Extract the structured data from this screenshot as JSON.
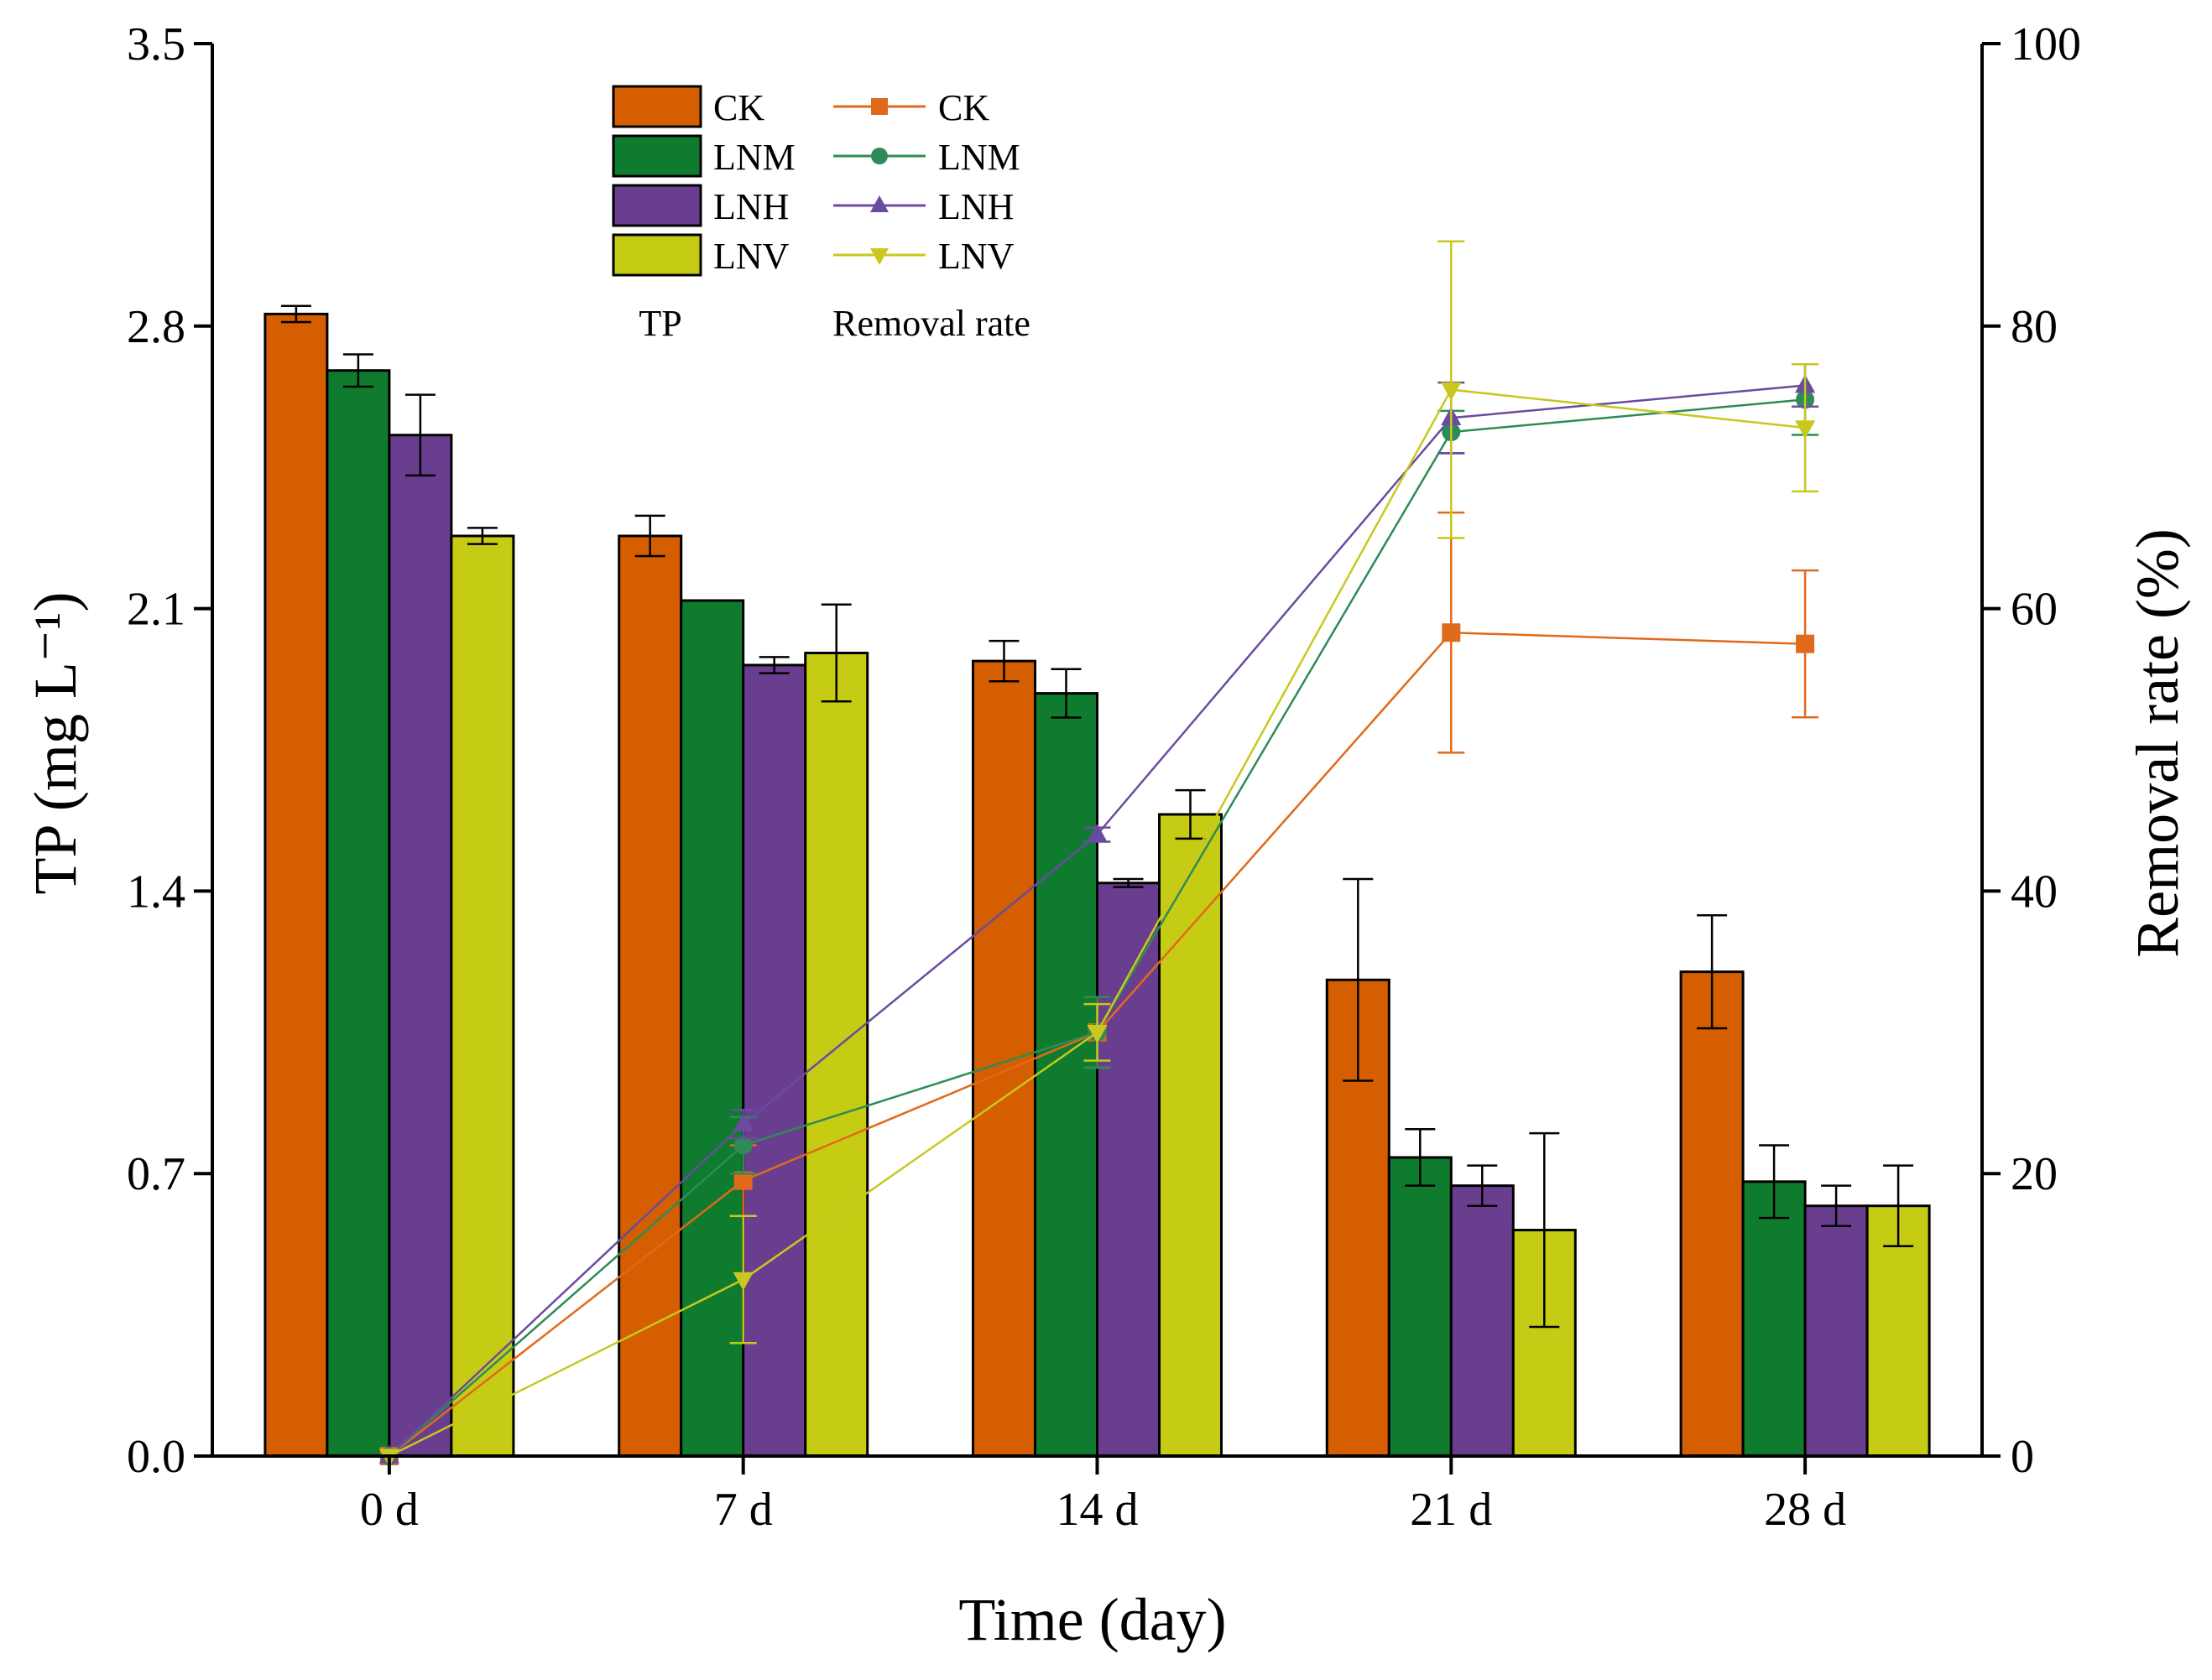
{
  "chart_data": {
    "type": "bar",
    "categories": [
      "0 d",
      "7 d",
      "14 d",
      "21 d",
      "28 d"
    ],
    "xlabel": "Time (day)",
    "ylabel": "TP (mg L⁻¹)",
    "ylabel_right": "Removal rate (%)",
    "ylim": [
      0,
      3.5
    ],
    "yticks": [
      "0.0",
      "0.7",
      "1.4",
      "2.1",
      "2.8",
      "3.5"
    ],
    "ylim_right": [
      0,
      100
    ],
    "yticks_right": [
      "0",
      "20",
      "40",
      "60",
      "80",
      "100"
    ],
    "legend_position": "top-left",
    "legend_headers": {
      "bars": "TP",
      "lines": "Removal rate"
    },
    "bar_series": [
      {
        "name": "CK",
        "color": "#D55E00",
        "values": [
          2.83,
          2.28,
          1.97,
          1.18,
          1.2
        ],
        "errors": [
          0.02,
          0.05,
          0.05,
          0.25,
          0.14
        ]
      },
      {
        "name": "LNM",
        "color": "#0F7B2E",
        "values": [
          2.69,
          2.12,
          1.89,
          0.74,
          0.68
        ],
        "errors": [
          0.04,
          0.0,
          0.06,
          0.07,
          0.09
        ]
      },
      {
        "name": "LNH",
        "color": "#6A3E8E",
        "values": [
          2.53,
          1.96,
          1.42,
          0.67,
          0.62
        ],
        "errors": [
          0.1,
          0.02,
          0.01,
          0.05,
          0.05
        ]
      },
      {
        "name": "LNV",
        "color": "#C6CC14",
        "values": [
          2.28,
          1.99,
          1.59,
          0.56,
          0.62
        ],
        "errors": [
          0.02,
          0.12,
          0.06,
          0.24,
          0.1
        ]
      }
    ],
    "line_series": [
      {
        "name": "CK",
        "color": "#E06A1B",
        "marker": "square",
        "values": [
          0,
          19.5,
          30,
          58.3,
          57.5
        ],
        "errors": [
          0,
          2.5,
          2.5,
          8.5,
          5.2
        ]
      },
      {
        "name": "LNM",
        "color": "#2E8B57",
        "marker": "circle",
        "values": [
          0,
          22.0,
          30,
          72.5,
          74.8
        ],
        "errors": [
          0,
          2.0,
          2.5,
          1.5,
          2.5
        ]
      },
      {
        "name": "LNH",
        "color": "#6A4BA0",
        "marker": "triangle-up",
        "values": [
          0,
          23.5,
          44,
          73.5,
          75.8
        ],
        "errors": [
          0,
          1.0,
          0.5,
          2.5,
          1.5
        ]
      },
      {
        "name": "LNV",
        "color": "#C8C81E",
        "marker": "triangle-down",
        "values": [
          0,
          12.5,
          30,
          75.5,
          72.8
        ],
        "errors": [
          0,
          4.5,
          2.0,
          10.5,
          4.5
        ]
      }
    ]
  }
}
